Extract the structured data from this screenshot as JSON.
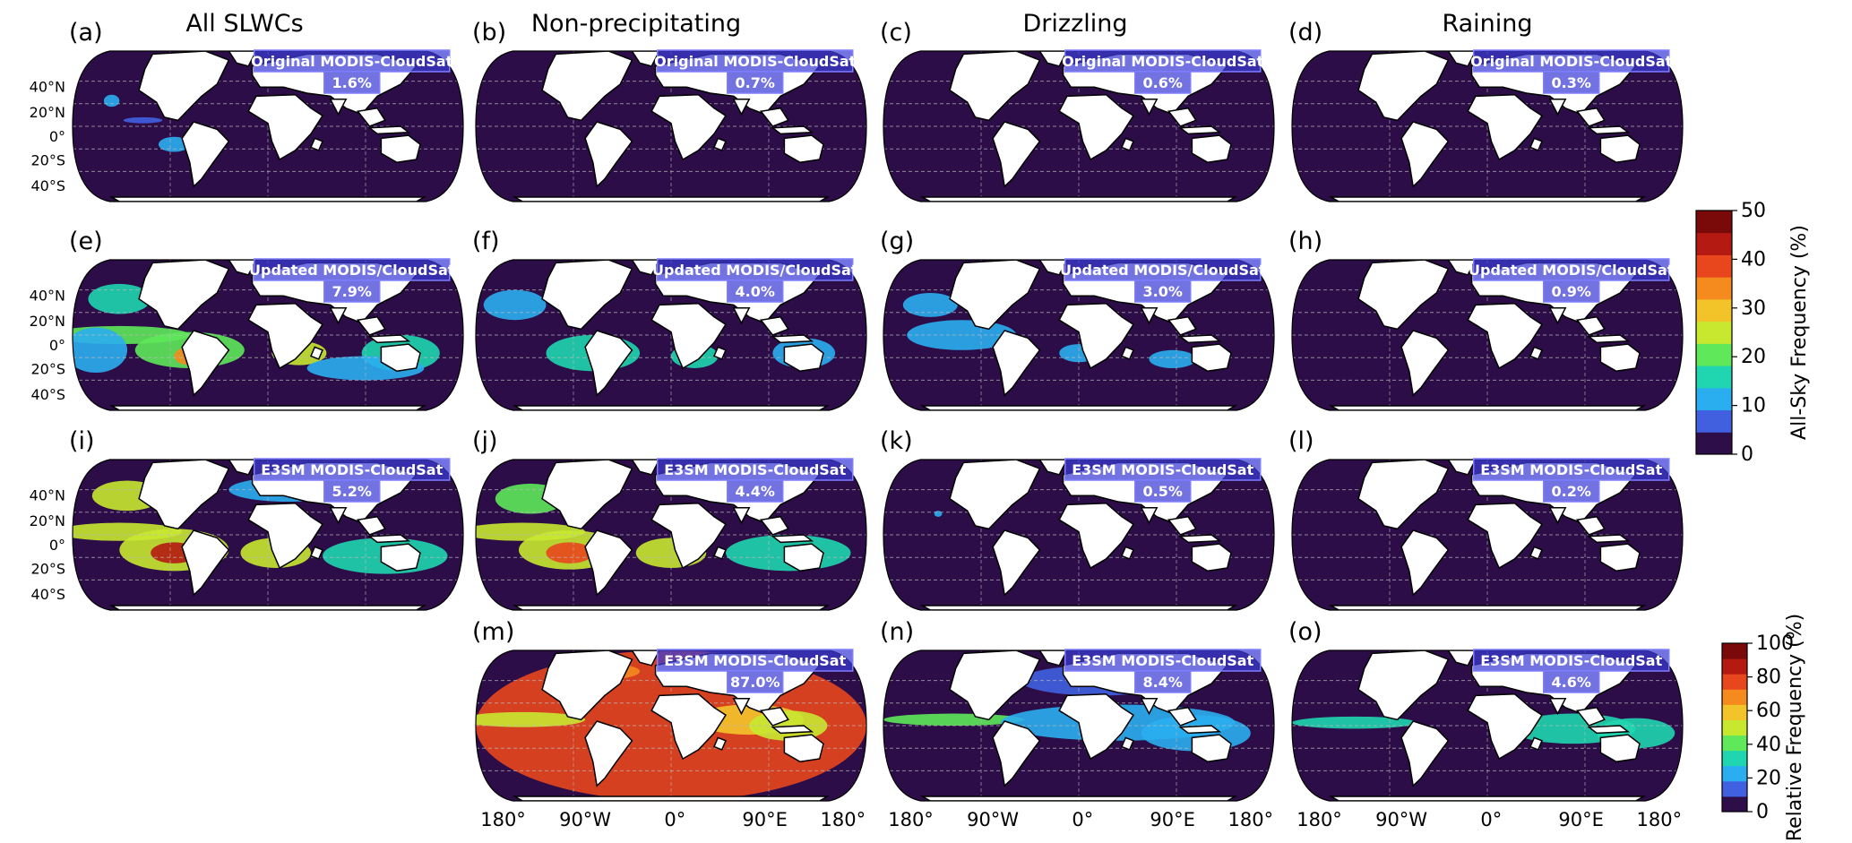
{
  "columns": [
    {
      "id": "all",
      "title": "All SLWCs"
    },
    {
      "id": "nonprecip",
      "title": "Non-precipitating"
    },
    {
      "id": "drizzle",
      "title": "Drizzling"
    },
    {
      "id": "rain",
      "title": "Raining"
    }
  ],
  "lat_ticks": [
    "40°N",
    "20°N",
    "0°",
    "20°S",
    "40°S"
  ],
  "lon_ticks": [
    "180°",
    "90°W",
    "0°",
    "90°E",
    "180°"
  ],
  "colorbars": [
    {
      "label": "All-Sky Frequency (%)",
      "ticks": [
        "0",
        "10",
        "20",
        "30",
        "40",
        "50"
      ],
      "range": [
        0,
        50
      ],
      "colors": [
        "#2d0e49",
        "#4060e0",
        "#2aaef0",
        "#1fd6b0",
        "#5ee85a",
        "#c8e830",
        "#f2c42a",
        "#f58a1e",
        "#e8461c",
        "#b51a12",
        "#7a0a0a"
      ]
    },
    {
      "label": "Relative Frequency (%)",
      "ticks": [
        "0",
        "20",
        "40",
        "60",
        "80",
        "100"
      ],
      "range": [
        0,
        100
      ],
      "colors": [
        "#2d0e49",
        "#4060e0",
        "#2aaef0",
        "#1fd6b0",
        "#5ee85a",
        "#c8e830",
        "#f2c42a",
        "#f58a1e",
        "#e8461c",
        "#b51a12",
        "#7a0a0a"
      ]
    }
  ],
  "chart_data": {
    "type": "heatmap",
    "title": "",
    "panels": [
      {
        "id": "a",
        "label": "(a)",
        "column": "All SLWCs",
        "dataset": "Original MODIS-CloudSat",
        "global_frequency_pct": 1.6,
        "global_frequency_text": "1.6%",
        "colorbar": "All-Sky Frequency (%)"
      },
      {
        "id": "b",
        "label": "(b)",
        "column": "Non-precipitating",
        "dataset": "Original MODIS-CloudSat",
        "global_frequency_pct": 0.7,
        "global_frequency_text": "0.7%",
        "colorbar": "All-Sky Frequency (%)"
      },
      {
        "id": "c",
        "label": "(c)",
        "column": "Drizzling",
        "dataset": "Original MODIS-CloudSat",
        "global_frequency_pct": 0.6,
        "global_frequency_text": "0.6%",
        "colorbar": "All-Sky Frequency (%)"
      },
      {
        "id": "d",
        "label": "(d)",
        "column": "Raining",
        "dataset": "Original MODIS-CloudSat",
        "global_frequency_pct": 0.3,
        "global_frequency_text": "0.3%",
        "colorbar": "All-Sky Frequency (%)"
      },
      {
        "id": "e",
        "label": "(e)",
        "column": "All SLWCs",
        "dataset": "Updated MODIS/CloudSat",
        "global_frequency_pct": 7.9,
        "global_frequency_text": "7.9%",
        "colorbar": "All-Sky Frequency (%)"
      },
      {
        "id": "f",
        "label": "(f)",
        "column": "Non-precipitating",
        "dataset": "Updated MODIS/CloudSat",
        "global_frequency_pct": 4.0,
        "global_frequency_text": "4.0%",
        "colorbar": "All-Sky Frequency (%)"
      },
      {
        "id": "g",
        "label": "(g)",
        "column": "Drizzling",
        "dataset": "Updated MODIS/CloudSat",
        "global_frequency_pct": 3.0,
        "global_frequency_text": "3.0%",
        "colorbar": "All-Sky Frequency (%)"
      },
      {
        "id": "h",
        "label": "(h)",
        "column": "Raining",
        "dataset": "Updated MODIS/CloudSat",
        "global_frequency_pct": 0.9,
        "global_frequency_text": "0.9%",
        "colorbar": "All-Sky Frequency (%)"
      },
      {
        "id": "i",
        "label": "(i)",
        "column": "All SLWCs",
        "dataset": "E3SM MODIS-CloudSat",
        "global_frequency_pct": 5.2,
        "global_frequency_text": "5.2%",
        "colorbar": "All-Sky Frequency (%)"
      },
      {
        "id": "j",
        "label": "(j)",
        "column": "Non-precipitating",
        "dataset": "E3SM MODIS-CloudSat",
        "global_frequency_pct": 4.4,
        "global_frequency_text": "4.4%",
        "colorbar": "All-Sky Frequency (%)"
      },
      {
        "id": "k",
        "label": "(k)",
        "column": "Drizzling",
        "dataset": "E3SM MODIS-CloudSat",
        "global_frequency_pct": 0.5,
        "global_frequency_text": "0.5%",
        "colorbar": "All-Sky Frequency (%)"
      },
      {
        "id": "l",
        "label": "(l)",
        "column": "Raining",
        "dataset": "E3SM MODIS-CloudSat",
        "global_frequency_pct": 0.2,
        "global_frequency_text": "0.2%",
        "colorbar": "All-Sky Frequency (%)"
      },
      {
        "id": "m",
        "label": "(m)",
        "column": "Non-precipitating",
        "dataset": "E3SM MODIS-CloudSat",
        "global_frequency_pct": 87.0,
        "global_frequency_text": "87.0%",
        "colorbar": "Relative Frequency (%)"
      },
      {
        "id": "n",
        "label": "(n)",
        "column": "Drizzling",
        "dataset": "E3SM MODIS-CloudSat",
        "global_frequency_pct": 8.4,
        "global_frequency_text": "8.4%",
        "colorbar": "Relative Frequency (%)"
      },
      {
        "id": "o",
        "label": "(o)",
        "column": "Raining",
        "dataset": "E3SM MODIS-CloudSat",
        "global_frequency_pct": 4.6,
        "global_frequency_text": "4.6%",
        "colorbar": "Relative Frequency (%)"
      }
    ],
    "ylim": [
      -60,
      70
    ],
    "xlim": [
      -180,
      180
    ],
    "grid": true
  }
}
